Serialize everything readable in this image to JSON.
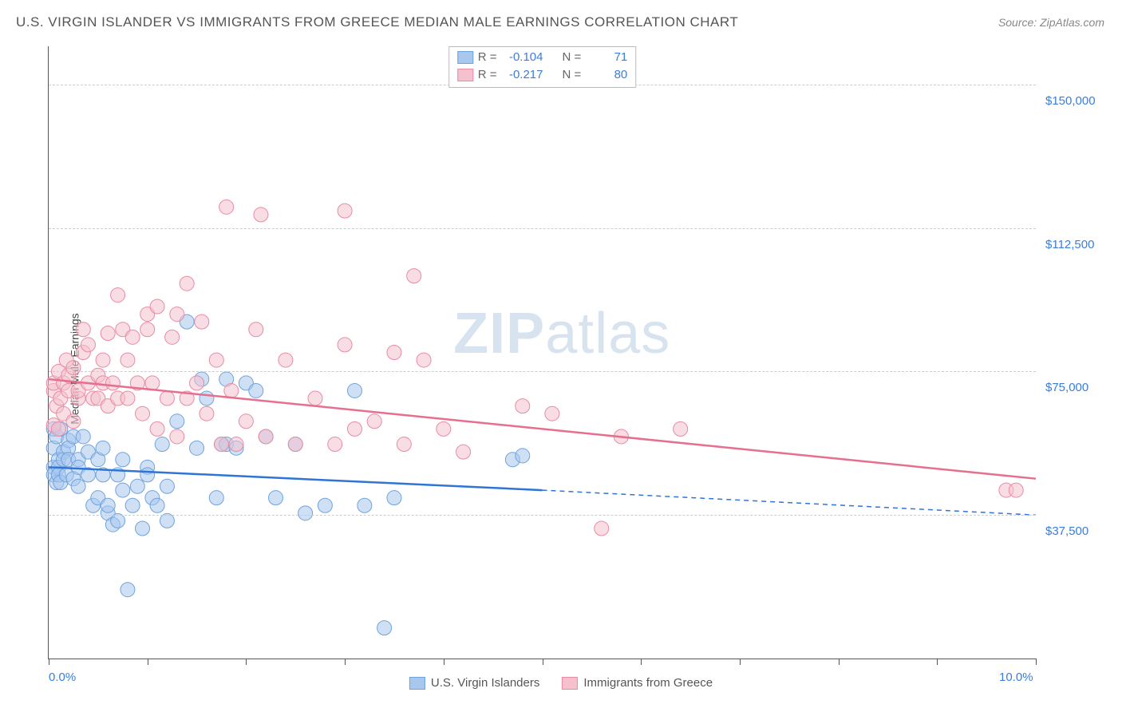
{
  "title": "U.S. VIRGIN ISLANDER VS IMMIGRANTS FROM GREECE MEDIAN MALE EARNINGS CORRELATION CHART",
  "source": "Source: ZipAtlas.com",
  "ylabel": "Median Male Earnings",
  "watermark_a": "ZIP",
  "watermark_b": "atlas",
  "chart": {
    "type": "scatter-with-regression",
    "background_color": "#ffffff",
    "grid_color": "#cccccc",
    "axis_color": "#555555",
    "label_color": "#3b7dd8",
    "label_fontsize": 15,
    "xlim": [
      0,
      10
    ],
    "ylim": [
      0,
      160000
    ],
    "xtick_positions": [
      0,
      1,
      2,
      3,
      4,
      5,
      6,
      7,
      8,
      9,
      10
    ],
    "xtick_labels": {
      "0": "0.0%",
      "10": "10.0%"
    },
    "ytick_positions": [
      37500,
      75000,
      112500,
      150000
    ],
    "ytick_labels": {
      "37500": "$37,500",
      "75000": "$75,000",
      "112500": "$112,500",
      "150000": "$150,000"
    },
    "marker_radius": 9,
    "marker_opacity": 0.55,
    "line_width": 2.5,
    "series": [
      {
        "name": "U.S. Virgin Islanders",
        "color_fill": "#a7c7ec",
        "color_stroke": "#6fa3dd",
        "line_color": "#2e75d6",
        "R": "-0.104",
        "N": "71",
        "regression": {
          "x0": 0,
          "y0": 50000,
          "x1_solid": 5,
          "y1_solid": 44000,
          "x1_dash": 10,
          "y1_dash": 37500
        },
        "points": [
          [
            0.05,
            60000
          ],
          [
            0.05,
            55000
          ],
          [
            0.05,
            50000
          ],
          [
            0.05,
            48000
          ],
          [
            0.08,
            46000
          ],
          [
            0.08,
            58000
          ],
          [
            0.1,
            52000
          ],
          [
            0.1,
            50000
          ],
          [
            0.1,
            48000
          ],
          [
            0.12,
            46000
          ],
          [
            0.12,
            60000
          ],
          [
            0.15,
            54000
          ],
          [
            0.15,
            52000
          ],
          [
            0.18,
            48000
          ],
          [
            0.2,
            57000
          ],
          [
            0.2,
            55000
          ],
          [
            0.2,
            52000
          ],
          [
            0.25,
            47000
          ],
          [
            0.25,
            58000
          ],
          [
            0.3,
            52000
          ],
          [
            0.3,
            50000
          ],
          [
            0.3,
            45000
          ],
          [
            0.35,
            58000
          ],
          [
            0.4,
            54000
          ],
          [
            0.4,
            48000
          ],
          [
            0.45,
            40000
          ],
          [
            0.5,
            52000
          ],
          [
            0.5,
            42000
          ],
          [
            0.55,
            48000
          ],
          [
            0.55,
            55000
          ],
          [
            0.6,
            38000
          ],
          [
            0.6,
            40000
          ],
          [
            0.65,
            35000
          ],
          [
            0.7,
            36000
          ],
          [
            0.7,
            48000
          ],
          [
            0.75,
            44000
          ],
          [
            0.75,
            52000
          ],
          [
            0.8,
            18000
          ],
          [
            0.85,
            40000
          ],
          [
            0.9,
            45000
          ],
          [
            0.95,
            34000
          ],
          [
            1.0,
            50000
          ],
          [
            1.0,
            48000
          ],
          [
            1.05,
            42000
          ],
          [
            1.1,
            40000
          ],
          [
            1.15,
            56000
          ],
          [
            1.2,
            36000
          ],
          [
            1.2,
            45000
          ],
          [
            1.3,
            62000
          ],
          [
            1.4,
            88000
          ],
          [
            1.5,
            55000
          ],
          [
            1.55,
            73000
          ],
          [
            1.6,
            68000
          ],
          [
            1.7,
            42000
          ],
          [
            1.75,
            56000
          ],
          [
            1.8,
            73000
          ],
          [
            1.8,
            56000
          ],
          [
            1.9,
            55000
          ],
          [
            2.0,
            72000
          ],
          [
            2.1,
            70000
          ],
          [
            2.2,
            58000
          ],
          [
            2.3,
            42000
          ],
          [
            2.5,
            56000
          ],
          [
            2.6,
            38000
          ],
          [
            2.8,
            40000
          ],
          [
            3.1,
            70000
          ],
          [
            3.2,
            40000
          ],
          [
            3.4,
            8000
          ],
          [
            3.5,
            42000
          ],
          [
            4.7,
            52000
          ],
          [
            4.8,
            53000
          ]
        ]
      },
      {
        "name": "Immigrants from Greece",
        "color_fill": "#f4c1cd",
        "color_stroke": "#e88ba3",
        "line_color": "#e56f8f",
        "R": "-0.217",
        "N": "80",
        "regression": {
          "x0": 0,
          "y0": 73000,
          "x1_solid": 10,
          "y1_solid": 47000,
          "x1_dash": 10,
          "y1_dash": 47000
        },
        "points": [
          [
            0.05,
            61000
          ],
          [
            0.05,
            70000
          ],
          [
            0.05,
            72000
          ],
          [
            0.08,
            66000
          ],
          [
            0.1,
            75000
          ],
          [
            0.1,
            60000
          ],
          [
            0.12,
            68000
          ],
          [
            0.15,
            72000
          ],
          [
            0.15,
            64000
          ],
          [
            0.18,
            78000
          ],
          [
            0.2,
            70000
          ],
          [
            0.2,
            74000
          ],
          [
            0.25,
            62000
          ],
          [
            0.25,
            76000
          ],
          [
            0.3,
            68000
          ],
          [
            0.3,
            70000
          ],
          [
            0.35,
            86000
          ],
          [
            0.35,
            80000
          ],
          [
            0.4,
            72000
          ],
          [
            0.4,
            82000
          ],
          [
            0.45,
            68000
          ],
          [
            0.5,
            74000
          ],
          [
            0.5,
            68000
          ],
          [
            0.55,
            78000
          ],
          [
            0.55,
            72000
          ],
          [
            0.6,
            85000
          ],
          [
            0.6,
            66000
          ],
          [
            0.65,
            72000
          ],
          [
            0.7,
            68000
          ],
          [
            0.7,
            95000
          ],
          [
            0.75,
            86000
          ],
          [
            0.8,
            78000
          ],
          [
            0.8,
            68000
          ],
          [
            0.85,
            84000
          ],
          [
            0.9,
            72000
          ],
          [
            0.95,
            64000
          ],
          [
            1.0,
            90000
          ],
          [
            1.0,
            86000
          ],
          [
            1.05,
            72000
          ],
          [
            1.1,
            60000
          ],
          [
            1.1,
            92000
          ],
          [
            1.2,
            68000
          ],
          [
            1.25,
            84000
          ],
          [
            1.3,
            58000
          ],
          [
            1.3,
            90000
          ],
          [
            1.4,
            68000
          ],
          [
            1.4,
            98000
          ],
          [
            1.5,
            72000
          ],
          [
            1.55,
            88000
          ],
          [
            1.6,
            64000
          ],
          [
            1.7,
            78000
          ],
          [
            1.75,
            56000
          ],
          [
            1.8,
            118000
          ],
          [
            1.85,
            70000
          ],
          [
            1.9,
            56000
          ],
          [
            2.0,
            62000
          ],
          [
            2.1,
            86000
          ],
          [
            2.15,
            116000
          ],
          [
            2.2,
            58000
          ],
          [
            2.4,
            78000
          ],
          [
            2.5,
            56000
          ],
          [
            2.7,
            68000
          ],
          [
            2.9,
            56000
          ],
          [
            3.0,
            117000
          ],
          [
            3.0,
            82000
          ],
          [
            3.1,
            60000
          ],
          [
            3.3,
            62000
          ],
          [
            3.5,
            80000
          ],
          [
            3.6,
            56000
          ],
          [
            3.7,
            100000
          ],
          [
            3.8,
            78000
          ],
          [
            4.0,
            60000
          ],
          [
            4.2,
            54000
          ],
          [
            4.8,
            66000
          ],
          [
            5.1,
            64000
          ],
          [
            5.6,
            34000
          ],
          [
            5.8,
            58000
          ],
          [
            6.4,
            60000
          ],
          [
            9.7,
            44000
          ],
          [
            9.8,
            44000
          ]
        ]
      }
    ]
  }
}
